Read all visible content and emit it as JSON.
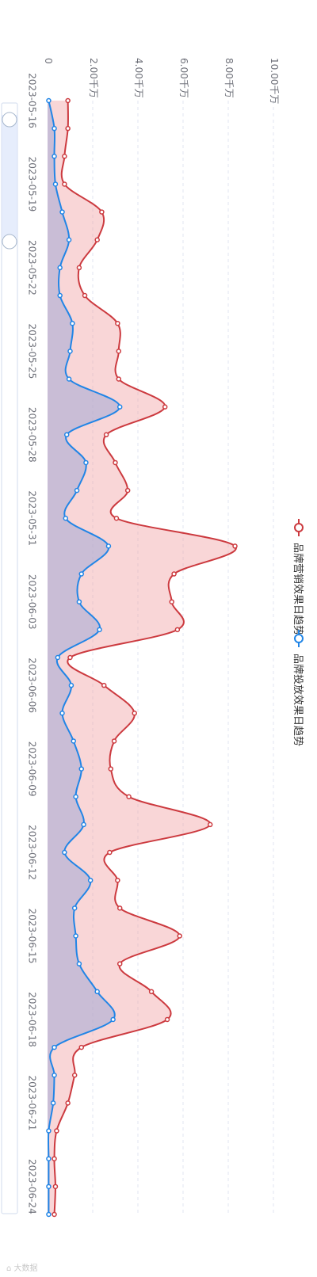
{
  "watermark": "⌂ 大数据",
  "chart_data": {
    "type": "area",
    "orientation": "rotated-90",
    "x_axis": "date",
    "y_axis_ticks": [
      "0",
      "2.00千万",
      "4.00千万",
      "6.00千万",
      "8.00千万",
      "10.00千万"
    ],
    "ylim": [
      0,
      10
    ],
    "y_unit": "千万",
    "grid": true,
    "legend_position": "right",
    "x_tick_labels": [
      "2023-05-16",
      "2023-05-19",
      "2023-05-22",
      "2023-05-25",
      "2023-05-28",
      "2023-05-31",
      "2023-06-03",
      "2023-06-06",
      "2023-06-09",
      "2023-06-12",
      "2023-06-15",
      "2023-06-18",
      "2023-06-21",
      "2023-06-24"
    ],
    "x": [
      "2023-05-16",
      "2023-05-17",
      "2023-05-18",
      "2023-05-19",
      "2023-05-20",
      "2023-05-21",
      "2023-05-22",
      "2023-05-23",
      "2023-05-24",
      "2023-05-25",
      "2023-05-26",
      "2023-05-27",
      "2023-05-28",
      "2023-05-29",
      "2023-05-30",
      "2023-05-31",
      "2023-06-01",
      "2023-06-02",
      "2023-06-03",
      "2023-06-04",
      "2023-06-05",
      "2023-06-06",
      "2023-06-07",
      "2023-06-08",
      "2023-06-09",
      "2023-06-10",
      "2023-06-11",
      "2023-06-12",
      "2023-06-13",
      "2023-06-14",
      "2023-06-15",
      "2023-06-16",
      "2023-06-17",
      "2023-06-18",
      "2023-06-19",
      "2023-06-20",
      "2023-06-21",
      "2023-06-22",
      "2023-06-23",
      "2023-06-24",
      "2023-06-25"
    ],
    "series": [
      {
        "name": "品牌营销效果日趋势",
        "color": "#cc3a3f",
        "values": [
          0.9,
          0.9,
          0.75,
          0.75,
          2.4,
          2.2,
          1.4,
          1.65,
          3.1,
          3.15,
          3.15,
          5.2,
          2.6,
          3.0,
          3.55,
          3.05,
          8.3,
          5.6,
          5.5,
          5.75,
          1.0,
          2.5,
          3.85,
          2.95,
          2.8,
          3.6,
          7.2,
          2.75,
          3.1,
          3.2,
          5.85,
          3.2,
          4.6,
          5.3,
          1.5,
          1.2,
          0.9,
          0.4,
          0.3,
          0.35,
          0.3
        ]
      },
      {
        "name": "品牌投放效果日趋势",
        "color": "#2185e6",
        "values": [
          0.05,
          0.3,
          0.3,
          0.35,
          0.65,
          0.95,
          0.55,
          0.55,
          1.1,
          1.0,
          0.95,
          3.2,
          0.85,
          1.7,
          1.3,
          0.8,
          2.7,
          1.5,
          1.4,
          2.3,
          0.45,
          1.05,
          0.65,
          1.15,
          1.5,
          1.25,
          1.6,
          0.75,
          1.9,
          1.2,
          1.25,
          1.4,
          2.2,
          2.9,
          0.3,
          0.3,
          0.25,
          0.05,
          0.05,
          0.05,
          0.05
        ]
      }
    ]
  }
}
